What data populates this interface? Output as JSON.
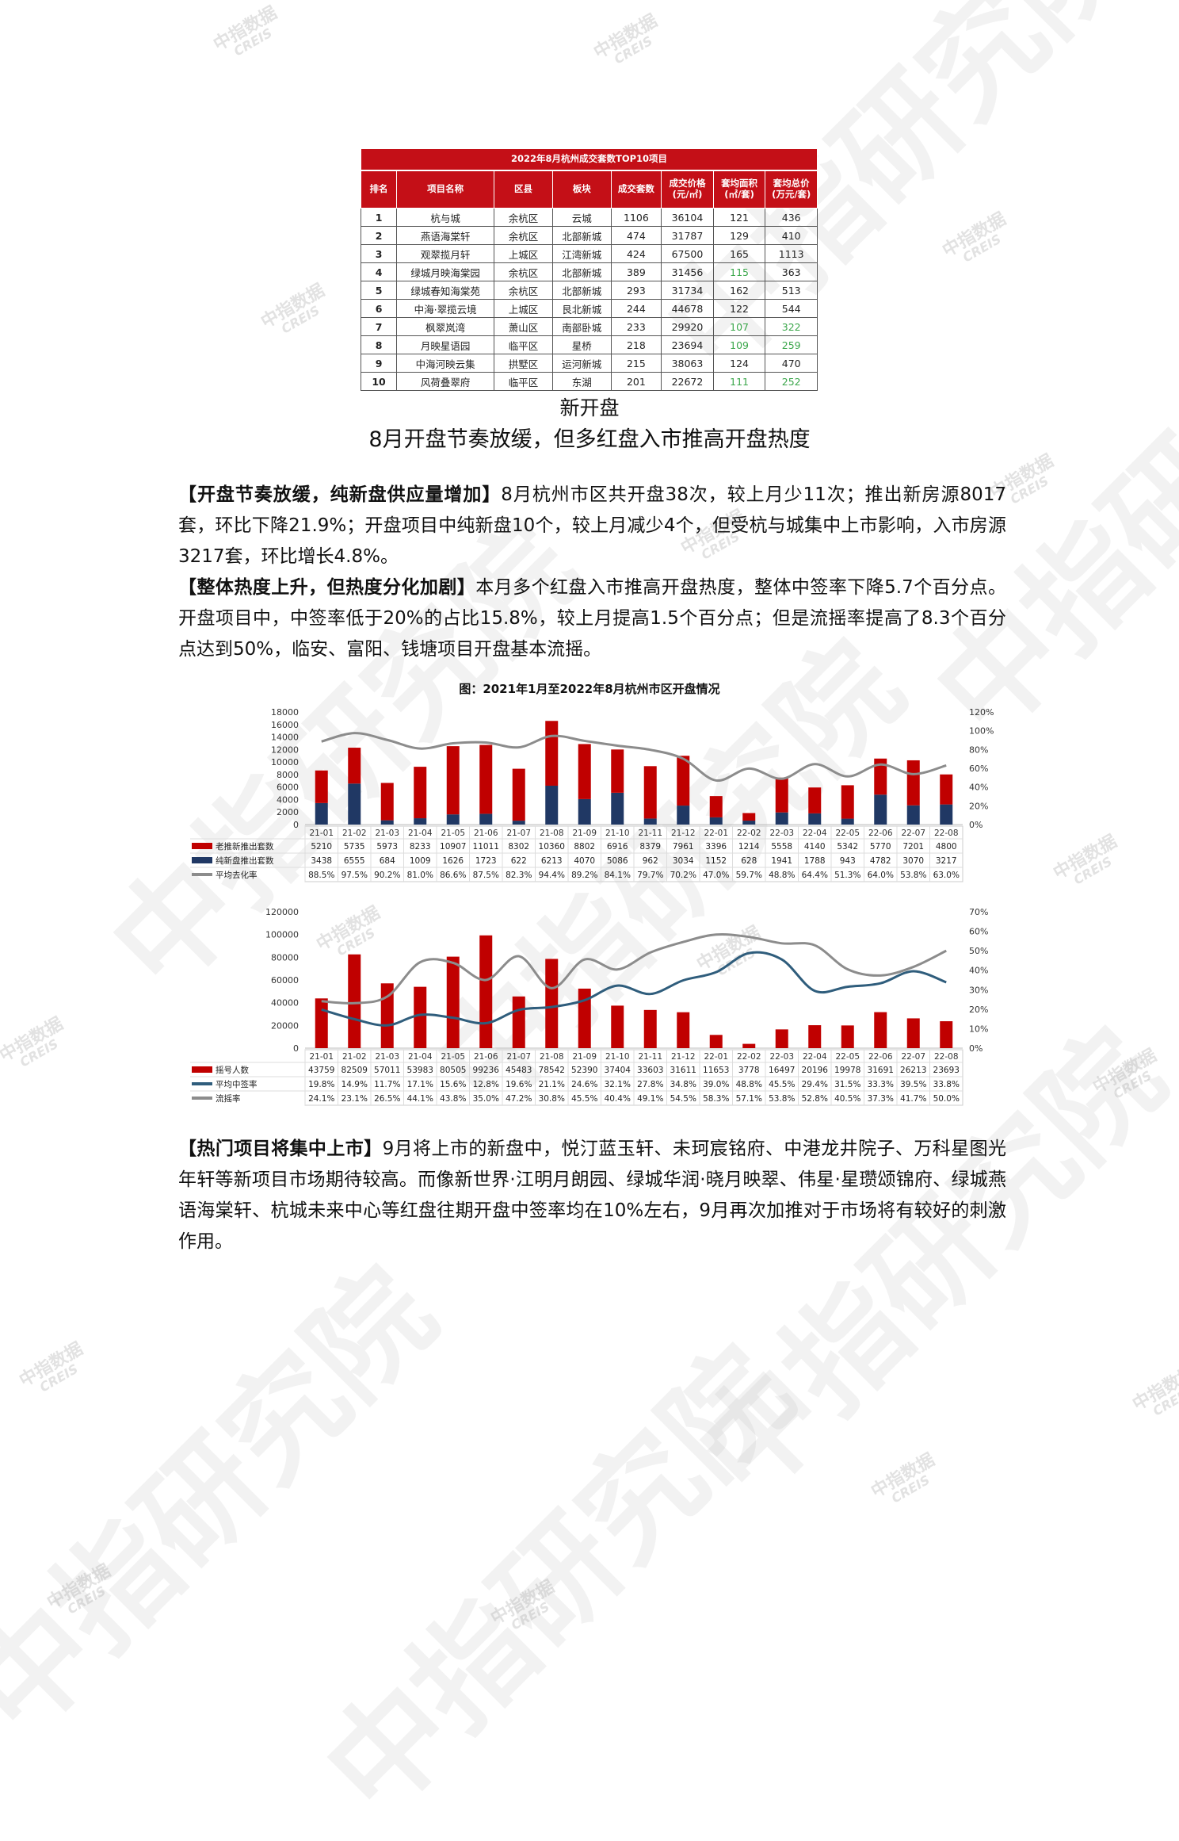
{
  "watermark": {
    "small": "中指数据",
    "small_en": "CREIS",
    "big": "中指研究院"
  },
  "table": {
    "title": "2022年8月杭州成交套数TOP10项目",
    "headers": [
      "排名",
      "项目名称",
      "区县",
      "板块",
      "成交套数",
      "成交价格(元/㎡)",
      "套均面积(㎡/套)",
      "套均总价(万元/套)"
    ],
    "rows": [
      [
        "1",
        "杭与城",
        "余杭区",
        "云城",
        "1106",
        "36104",
        "121",
        "436"
      ],
      [
        "2",
        "燕语海棠轩",
        "余杭区",
        "北部新城",
        "474",
        "31787",
        "129",
        "410"
      ],
      [
        "3",
        "观翠揽月轩",
        "上城区",
        "江湾新城",
        "424",
        "67500",
        "165",
        "1113"
      ],
      [
        "4",
        "绿城月映海棠园",
        "余杭区",
        "北部新城",
        "389",
        "31456",
        "115",
        "363"
      ],
      [
        "5",
        "绿城春知海棠苑",
        "余杭区",
        "北部新城",
        "293",
        "31734",
        "162",
        "513"
      ],
      [
        "6",
        "中海·翠揽云境",
        "上城区",
        "艮北新城",
        "244",
        "44678",
        "122",
        "544"
      ],
      [
        "7",
        "枫翠岚湾",
        "萧山区",
        "南部卧城",
        "233",
        "29920",
        "107",
        "322"
      ],
      [
        "8",
        "月映星语园",
        "临平区",
        "星桥",
        "218",
        "23694",
        "109",
        "259"
      ],
      [
        "9",
        "中海河映云集",
        "拱墅区",
        "运河新城",
        "215",
        "38063",
        "124",
        "470"
      ],
      [
        "10",
        "风荷叠翠府",
        "临平区",
        "东湖",
        "201",
        "22672",
        "111",
        "252"
      ]
    ],
    "green_cells": [
      [
        3,
        6
      ],
      [
        6,
        6
      ],
      [
        6,
        7
      ],
      [
        7,
        6
      ],
      [
        7,
        7
      ],
      [
        9,
        6
      ],
      [
        9,
        7
      ]
    ],
    "colors": {
      "header": "#c40f17",
      "highlight": "#3aa64a"
    }
  },
  "section": {
    "title": "新开盘",
    "subtitle": "8月开盘节奏放缓，但多红盘入市推高开盘热度"
  },
  "paragraphs": [
    {
      "lead": "【开盘节奏放缓，纯新盘供应量增加】",
      "text": "8月杭州市区共开盘38次，较上月少11次；推出新房源8017套，环比下降21.9%；开盘项目中纯新盘10个，较上月减少4个，但受杭与城集中上市影响，入市房源3217套，环比增长4.8%。"
    },
    {
      "lead": "【整体热度上升，但热度分化加剧】",
      "text": "本月多个红盘入市推高开盘热度，整体中签率下降5.7个百分点。开盘项目中，中签率低于20%的占比15.8%，较上月提高1.5个百分点；但是流摇率提高了8.3个百分点达到50%，临安、富阳、钱塘项目开盘基本流摇。"
    },
    {
      "lead": "【热门项目将集中上市】",
      "text": "9月将上市的新盘中，悦汀蓝玉轩、未珂宸铭府、中港龙井院子、万科星图光年轩等新项目市场期待较高。而像新世界·江明月朗园、绿城华润·晓月映翠、伟星·星瓒颂锦府、绿城燕语海棠轩、杭城未来中心等红盘往期开盘中签率均在10%左右，9月再次加推对于市场将有较好的刺激作用。"
    }
  ],
  "chart_caption": "图：2021年1月至2022年8月杭州市区开盘情况",
  "chart_data": [
    {
      "type": "bar",
      "stacked": true,
      "categories": [
        "21-01",
        "21-02",
        "21-03",
        "21-04",
        "21-05",
        "21-06",
        "21-07",
        "21-08",
        "21-09",
        "21-10",
        "21-11",
        "21-12",
        "22-01",
        "22-02",
        "22-03",
        "22-04",
        "22-05",
        "22-06",
        "22-07",
        "22-08"
      ],
      "series": [
        {
          "name": "老推新推出套数",
          "kind": "bar",
          "color": "#c00000",
          "values": [
            5210,
            5735,
            5973,
            8233,
            10907,
            11011,
            8302,
            10360,
            8802,
            6916,
            8379,
            7961,
            3396,
            1214,
            5558,
            4140,
            5342,
            5770,
            7201,
            4800
          ],
          "labels": [
            "5210",
            "5735",
            "5973",
            "8233",
            "10907",
            "11011",
            "8302",
            "10360",
            "8802",
            "6916",
            "8379",
            "7961",
            "3396",
            "1214",
            "5558",
            "4140",
            "5342",
            "5770",
            "7201",
            "4800"
          ]
        },
        {
          "name": "纯新盘推出套数",
          "kind": "bar",
          "color": "#203864",
          "values": [
            3438,
            6555,
            684,
            1009,
            1626,
            1723,
            622,
            6213,
            4070,
            5086,
            962,
            3034,
            1152,
            628,
            1941,
            1788,
            943,
            4782,
            3070,
            3217
          ],
          "labels": [
            "3438",
            "6555",
            "684",
            "1009",
            "1626",
            "1723",
            "622",
            "6213",
            "4070",
            "5086",
            "962",
            "3034",
            "1152",
            "628",
            "1941",
            "1788",
            "943",
            "4782",
            "3070",
            "3217"
          ]
        },
        {
          "name": "平均去化率",
          "kind": "line",
          "axis": "right",
          "color": "#8c8c8c",
          "values": [
            88.5,
            97.5,
            90.2,
            81.0,
            86.6,
            87.5,
            82.3,
            94.4,
            89.2,
            84.1,
            79.7,
            70.2,
            47.0,
            59.7,
            48.8,
            64.4,
            51.3,
            64.0,
            53.8,
            63.0
          ],
          "labels": [
            "88.5%",
            "97.5%",
            "90.2%",
            "81.0%",
            "86.6%",
            "87.5%",
            "82.3%",
            "94.4%",
            "89.2%",
            "84.1%",
            "79.7%",
            "70.2%",
            "47.0%",
            "59.7%",
            "48.8%",
            "64.4%",
            "51.3%",
            "64.0%",
            "53.8%",
            "63.0%"
          ]
        }
      ],
      "ylim": [
        0,
        18000
      ],
      "yticks": [
        "0",
        "2000",
        "4000",
        "6000",
        "8000",
        "10000",
        "12000",
        "14000",
        "16000",
        "18000"
      ],
      "y2lim": [
        0,
        120
      ],
      "y2ticks": [
        "0%",
        "20%",
        "40%",
        "60%",
        "80%",
        "100%",
        "120%"
      ]
    },
    {
      "type": "bar",
      "categories": [
        "21-01",
        "21-02",
        "21-03",
        "21-04",
        "21-05",
        "21-06",
        "21-07",
        "21-08",
        "21-09",
        "21-10",
        "21-11",
        "21-12",
        "22-01",
        "22-02",
        "22-03",
        "22-04",
        "22-05",
        "22-06",
        "22-07",
        "22-08"
      ],
      "series": [
        {
          "name": "摇号人数",
          "kind": "bar",
          "color": "#c00000",
          "values": [
            43759,
            82509,
            57011,
            53983,
            80505,
            99236,
            45483,
            78542,
            52390,
            37404,
            33603,
            31611,
            11653,
            3778,
            16497,
            20196,
            19978,
            31691,
            26213,
            23693
          ],
          "labels": [
            "43759",
            "82509",
            "57011",
            "53983",
            "80505",
            "99236",
            "45483",
            "78542",
            "52390",
            "37404",
            "33603",
            "31611",
            "11653",
            "3778",
            "16497",
            "20196",
            "19978",
            "31691",
            "26213",
            "23693"
          ]
        },
        {
          "name": "平均中签率",
          "kind": "line",
          "axis": "right",
          "color": "#2f5d7c",
          "values": [
            19.8,
            14.9,
            11.7,
            17.1,
            15.6,
            12.8,
            19.6,
            21.1,
            24.6,
            32.1,
            27.8,
            34.8,
            39.0,
            48.8,
            45.5,
            29.4,
            31.5,
            33.3,
            39.5,
            33.8
          ],
          "labels": [
            "19.8%",
            "14.9%",
            "11.7%",
            "17.1%",
            "15.6%",
            "12.8%",
            "19.6%",
            "21.1%",
            "24.6%",
            "32.1%",
            "27.8%",
            "34.8%",
            "39.0%",
            "48.8%",
            "45.5%",
            "29.4%",
            "31.5%",
            "33.3%",
            "39.5%",
            "33.8%"
          ]
        },
        {
          "name": "流摇率",
          "kind": "line",
          "axis": "right",
          "color": "#8c8c8c",
          "values": [
            24.1,
            23.1,
            26.5,
            44.1,
            43.8,
            35.0,
            47.2,
            30.8,
            45.5,
            40.4,
            49.1,
            54.5,
            58.3,
            57.1,
            53.8,
            52.8,
            40.5,
            37.3,
            41.7,
            50.0
          ],
          "labels": [
            "24.1%",
            "23.1%",
            "26.5%",
            "44.1%",
            "43.8%",
            "35.0%",
            "47.2%",
            "30.8%",
            "45.5%",
            "40.4%",
            "49.1%",
            "54.5%",
            "58.3%",
            "57.1%",
            "53.8%",
            "52.8%",
            "40.5%",
            "37.3%",
            "41.7%",
            "50.0%"
          ]
        }
      ],
      "ylim": [
        0,
        120000
      ],
      "yticks": [
        "0",
        "20000",
        "40000",
        "60000",
        "80000",
        "100000",
        "120000"
      ],
      "y2lim": [
        0,
        70
      ],
      "y2ticks": [
        "0%",
        "10%",
        "20%",
        "30%",
        "40%",
        "50%",
        "60%",
        "70%"
      ]
    }
  ]
}
